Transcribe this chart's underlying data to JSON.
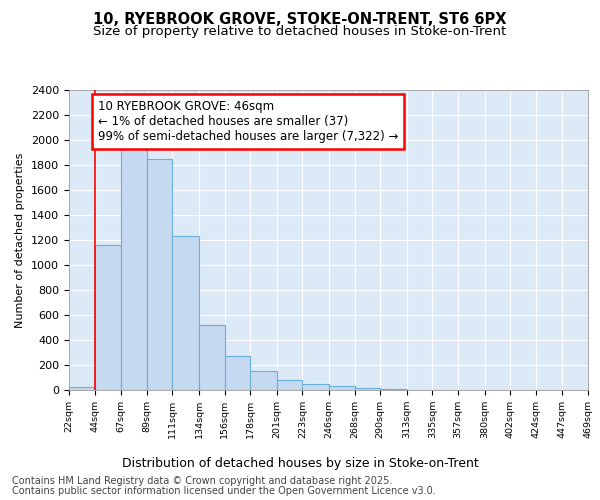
{
  "title_line1": "10, RYEBROOK GROVE, STOKE-ON-TRENT, ST6 6PX",
  "title_line2": "Size of property relative to detached houses in Stoke-on-Trent",
  "xlabel": "Distribution of detached houses by size in Stoke-on-Trent",
  "ylabel": "Number of detached properties",
  "bar_left_edges": [
    22,
    44,
    67,
    89,
    111,
    134,
    156,
    178,
    201,
    223,
    246,
    268,
    290,
    313,
    335,
    357,
    380,
    402,
    424,
    447
  ],
  "bar_widths": [
    22,
    23,
    22,
    22,
    23,
    22,
    22,
    23,
    22,
    23,
    22,
    22,
    23,
    22,
    22,
    23,
    22,
    22,
    23,
    22
  ],
  "bar_heights": [
    25,
    1160,
    1960,
    1850,
    1235,
    520,
    270,
    150,
    80,
    45,
    30,
    15,
    5,
    2,
    2,
    2,
    1,
    1,
    1,
    1
  ],
  "bar_color": "#c5d9f0",
  "bar_edge_color": "#6baed6",
  "tick_labels": [
    "22sqm",
    "44sqm",
    "67sqm",
    "89sqm",
    "111sqm",
    "134sqm",
    "156sqm",
    "178sqm",
    "201sqm",
    "223sqm",
    "246sqm",
    "268sqm",
    "290sqm",
    "313sqm",
    "335sqm",
    "357sqm",
    "380sqm",
    "402sqm",
    "424sqm",
    "447sqm",
    "469sqm"
  ],
  "ylim": [
    0,
    2400
  ],
  "yticks": [
    0,
    200,
    400,
    600,
    800,
    1000,
    1200,
    1400,
    1600,
    1800,
    2000,
    2200,
    2400
  ],
  "property_line_x": 44,
  "annotation_box_text": "10 RYEBROOK GROVE: 46sqm\n← 1% of detached houses are smaller (37)\n99% of semi-detached houses are larger (7,322) →",
  "footer_line1": "Contains HM Land Registry data © Crown copyright and database right 2025.",
  "footer_line2": "Contains public sector information licensed under the Open Government Licence v3.0.",
  "fig_background_color": "#ffffff",
  "plot_bg_color": "#dce9f7",
  "grid_color": "#ffffff",
  "title_fontsize": 10.5,
  "subtitle_fontsize": 9.5,
  "annotation_fontsize": 8.5,
  "footer_fontsize": 7,
  "ylabel_fontsize": 8,
  "xlabel_fontsize": 9
}
